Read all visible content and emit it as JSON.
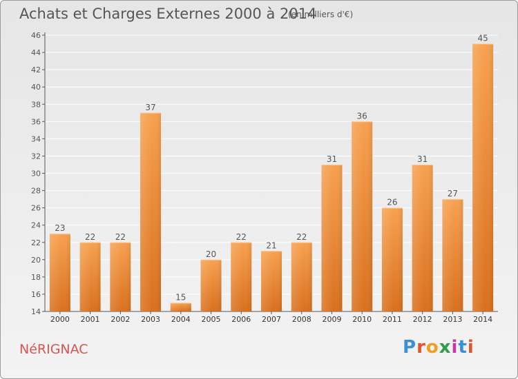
{
  "header": {
    "title": "Achats et Charges Externes 2000 à 2014",
    "subtitle": "(en milliers d'€)"
  },
  "footer": {
    "commune": "NéRIGNAC",
    "logo": "Proxiti",
    "logo_colors": [
      "#3b8fd9",
      "#e0552b",
      "#f0a020",
      "#2e9e4a",
      "#c43aa8",
      "#3b8fd9",
      "#e0552b"
    ]
  },
  "colors": {
    "bar_light": "#f7a14f",
    "bar_dark": "#d9701e",
    "grid": "#ffffff",
    "text": "#555555"
  },
  "chart_data": {
    "type": "bar",
    "title": "Achats et Charges Externes 2000 à 2014",
    "subtitle": "(en milliers d'€)",
    "xlabel": "",
    "ylabel": "",
    "categories": [
      "2000",
      "2001",
      "2002",
      "2003",
      "2004",
      "2005",
      "2006",
      "2007",
      "2008",
      "2009",
      "2010",
      "2011",
      "2012",
      "2013",
      "2014"
    ],
    "values": [
      23,
      22,
      22,
      37,
      15,
      20,
      22,
      21,
      22,
      31,
      36,
      26,
      31,
      27,
      45
    ],
    "ylim": [
      14,
      46
    ],
    "yticks": [
      14,
      16,
      18,
      20,
      22,
      24,
      26,
      28,
      30,
      32,
      34,
      36,
      38,
      40,
      42,
      44,
      46
    ],
    "grid": true,
    "data_labels": true
  }
}
